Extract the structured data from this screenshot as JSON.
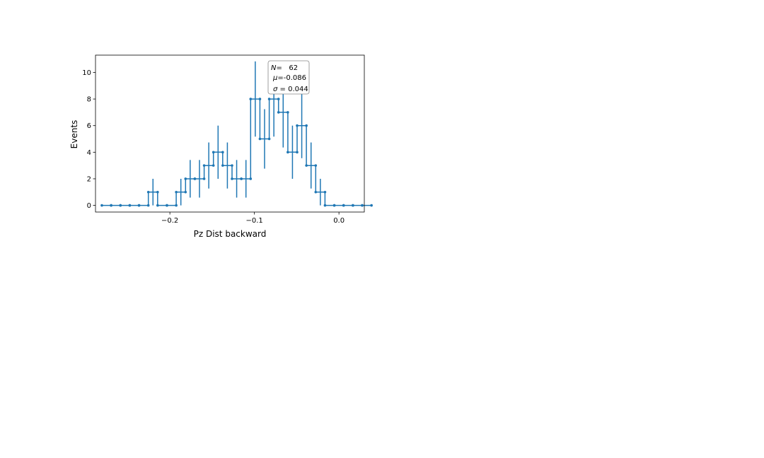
{
  "chart_data": {
    "type": "scatter",
    "title": "",
    "xlabel": "Pz Dist backward",
    "ylabel": "Events",
    "xlim": [
      -0.288,
      0.03
    ],
    "ylim": [
      -0.5,
      11.3
    ],
    "xticks": [
      -0.2,
      -0.1,
      0.0
    ],
    "xtick_labels": [
      "−0.2",
      "−0.1",
      "0.0"
    ],
    "yticks": [
      0,
      2,
      4,
      6,
      8,
      10
    ],
    "ytick_labels": [
      "0",
      "2",
      "4",
      "6",
      "8",
      "10"
    ],
    "grid": false,
    "color": "#1f77b4",
    "bin_width": 0.011,
    "series": [
      {
        "x": [
          -0.275,
          -0.264,
          -0.253,
          -0.242,
          -0.231,
          -0.22,
          -0.209,
          -0.198,
          -0.187,
          -0.176,
          -0.165,
          -0.154,
          -0.143,
          -0.132,
          -0.121,
          -0.11,
          -0.099,
          -0.088,
          -0.077,
          -0.066,
          -0.055,
          -0.044,
          -0.033,
          -0.022,
          -0.011,
          0.0,
          0.011,
          0.022,
          0.033
        ],
        "values": [
          0,
          0,
          0,
          0,
          0,
          1,
          0,
          0,
          1,
          2,
          2,
          3,
          4,
          3,
          2,
          2,
          8,
          5,
          8,
          7,
          4,
          6,
          3,
          1,
          0,
          0,
          0,
          0,
          0
        ]
      }
    ],
    "stats_box": {
      "lines": [
        {
          "sym": "N",
          "op": "=",
          "val": "   62"
        },
        {
          "sym": "μ",
          "op": "=",
          "val": "-0.086"
        },
        {
          "sym": "σ",
          "op": " = ",
          "val": "0.044"
        }
      ]
    }
  }
}
